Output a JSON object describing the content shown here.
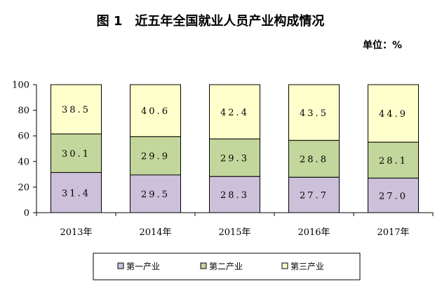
{
  "title": "图 1　近五年全国就业人员产业构成情况",
  "unit": "单位：%",
  "chart_data": {
    "type": "bar",
    "stacked": true,
    "categories": [
      "2013年",
      "2014年",
      "2015年",
      "2016年",
      "2017年"
    ],
    "series": [
      {
        "name": "第一产业",
        "values": [
          31.4,
          29.5,
          28.3,
          27.7,
          27.0
        ],
        "labels": [
          "31.4",
          "29.5",
          "28.3",
          "27.7",
          "27.0"
        ],
        "color": "#ccc0da"
      },
      {
        "name": "第二产业",
        "values": [
          30.1,
          29.9,
          29.3,
          28.8,
          28.1
        ],
        "labels": [
          "30.1",
          "29.9",
          "29.3",
          "28.8",
          "28.1"
        ],
        "color": "#c3d69b"
      },
      {
        "name": "第三产业",
        "values": [
          38.5,
          40.6,
          42.4,
          43.5,
          44.9
        ],
        "labels": [
          "38.5",
          "40.6",
          "42.4",
          "43.5",
          "44.9"
        ],
        "color": "#ffffcc"
      }
    ],
    "yticks": [
      "0",
      "20",
      "40",
      "60",
      "80",
      "100"
    ],
    "ylim": [
      0,
      100
    ],
    "grid": false,
    "legend_position": "bottom"
  }
}
